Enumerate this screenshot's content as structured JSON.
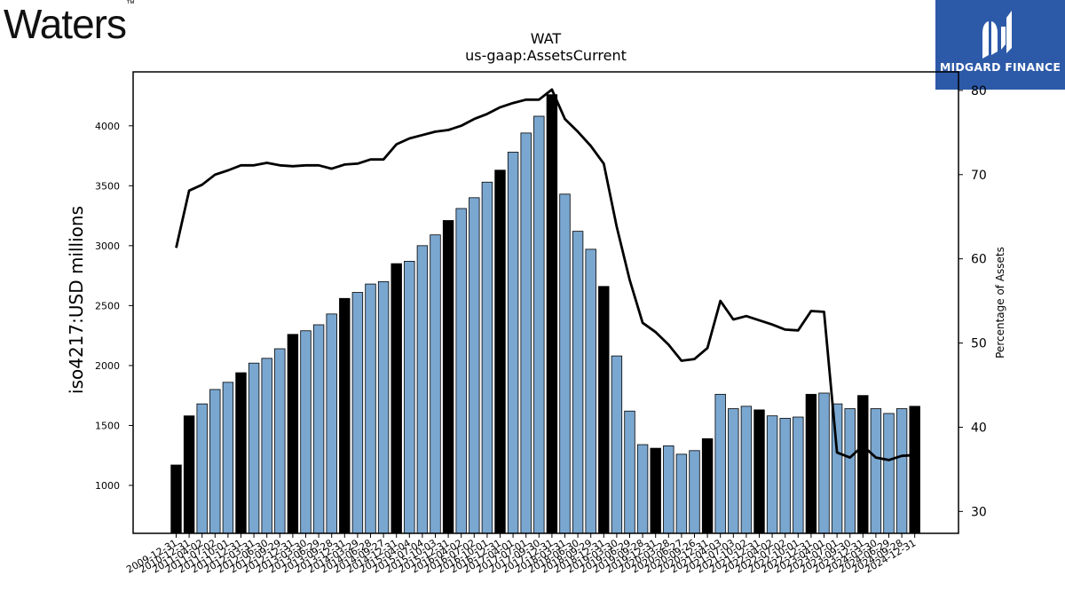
{
  "logos": {
    "left_text": "Waters",
    "left_mark": "™",
    "right_text": "MIDGARD FINANCE"
  },
  "chart_data": {
    "type": "bar",
    "title": "WAT",
    "subtitle": "us-gaap:AssetsCurrent",
    "ylabel": "iso4217:USD  millions",
    "y2label": "Percentage of Assets",
    "ylim": [
      600,
      4450
    ],
    "y2lim": [
      27.4,
      82.2
    ],
    "yticks": [
      1000,
      1500,
      2000,
      2500,
      3000,
      3500,
      4000
    ],
    "y2ticks": [
      30,
      40,
      50,
      60,
      70,
      80
    ],
    "colors": {
      "annual": "#000000",
      "quarterly": "#7aa7d0",
      "line": "#000000"
    },
    "categories": [
      "2009-12-31",
      "2010-12-31",
      "2011-04-02",
      "2011-07-02",
      "2011-10-01",
      "2011-12-31",
      "2012-03-31",
      "2012-06-30",
      "2012-09-29",
      "2012-12-31",
      "2013-03-30",
      "2013-06-29",
      "2013-09-28",
      "2013-12-31",
      "2014-03-29",
      "2014-06-28",
      "2014-09-27",
      "2014-12-31",
      "2015-04-04",
      "2015-07-04",
      "2015-10-03",
      "2015-12-31",
      "2016-04-02",
      "2016-07-02",
      "2016-10-01",
      "2016-12-31",
      "2017-04-01",
      "2017-07-01",
      "2017-09-30",
      "2017-12-31",
      "2018-03-31",
      "2018-06-30",
      "2018-09-29",
      "2018-12-31",
      "2019-03-30",
      "2019-06-29",
      "2019-09-28",
      "2019-12-31",
      "2020-03-28",
      "2020-06-27",
      "2020-09-26",
      "2020-12-31",
      "2021-04-03",
      "2021-07-03",
      "2021-10-02",
      "2021-12-31",
      "2022-04-02",
      "2022-07-02",
      "2022-10-01",
      "2022-12-31",
      "2023-04-01",
      "2023-07-01",
      "2023-09-30",
      "2023-12-31",
      "2024-03-30",
      "2024-06-29",
      "2024-09-28",
      "2024-12-31"
    ],
    "annual": [
      true,
      true,
      false,
      false,
      false,
      true,
      false,
      false,
      false,
      true,
      false,
      false,
      false,
      true,
      false,
      false,
      false,
      true,
      false,
      false,
      false,
      true,
      false,
      false,
      false,
      true,
      false,
      false,
      false,
      true,
      false,
      false,
      false,
      true,
      false,
      false,
      false,
      true,
      false,
      false,
      false,
      true,
      false,
      false,
      false,
      true,
      false,
      false,
      false,
      true,
      false,
      false,
      false,
      true,
      false,
      false,
      false,
      true
    ],
    "series": [
      {
        "name": "AssetsCurrent",
        "axis": "left",
        "values": [
          1170,
          1580,
          1680,
          1800,
          1860,
          1940,
          2020,
          2060,
          2140,
          2260,
          2290,
          2340,
          2430,
          2560,
          2610,
          2680,
          2700,
          2850,
          2870,
          3000,
          3090,
          3210,
          3310,
          3400,
          3530,
          3630,
          3780,
          3940,
          4080,
          4260,
          3430,
          3120,
          2970,
          2660,
          2080,
          1620,
          1340,
          1310,
          1330,
          1260,
          1290,
          1390,
          1760,
          1640,
          1660,
          1630,
          1580,
          1560,
          1570,
          1760,
          1770,
          1680,
          1640,
          1750,
          1640,
          1600,
          1640,
          1660
        ]
      },
      {
        "name": "Percentage of Assets",
        "axis": "right",
        "values": [
          61.3,
          68.1,
          68.8,
          70.0,
          70.5,
          71.1,
          71.1,
          71.4,
          71.1,
          71.0,
          71.1,
          71.1,
          70.7,
          71.2,
          71.3,
          71.8,
          71.8,
          73.6,
          74.3,
          74.7,
          75.1,
          75.3,
          75.8,
          76.6,
          77.2,
          78.0,
          78.5,
          78.9,
          78.9,
          80.1,
          76.6,
          75.1,
          73.4,
          71.3,
          63.8,
          57.5,
          52.4,
          51.3,
          49.8,
          47.9,
          48.1,
          49.4,
          55.0,
          52.8,
          53.2,
          52.7,
          52.2,
          51.6,
          51.5,
          53.8,
          53.7,
          37.0,
          36.4,
          37.8,
          36.4,
          36.1,
          36.6,
          36.7
        ]
      }
    ]
  }
}
